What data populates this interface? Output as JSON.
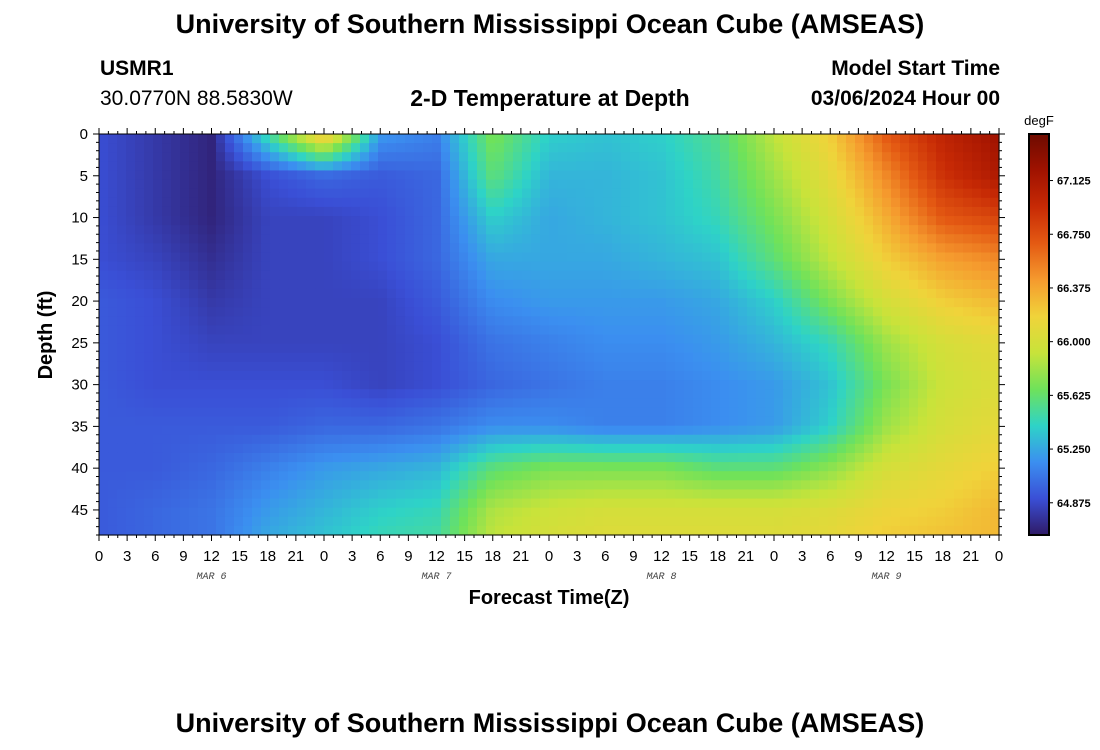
{
  "page": {
    "title": "University of Southern Mississippi Ocean Cube (AMSEAS)",
    "footer_title": "University of Southern Mississippi Ocean Cube (AMSEAS)",
    "station": "USMR1",
    "coords": "30.0770N  88.5830W",
    "plot_title": "2-D Temperature at Depth",
    "start_label": "Model Start Time",
    "start_value": "03/06/2024 Hour 00"
  },
  "chart_data": {
    "type": "heatmap",
    "title": "2-D Temperature at Depth",
    "xlabel": "Forecast Time(Z)",
    "ylabel": "Depth (ft)",
    "x_unit": "hours since 03/06/2024 00Z",
    "xlim": [
      0,
      96
    ],
    "ylim": [
      48,
      0
    ],
    "x_tick_labels": [
      "0",
      "3",
      "6",
      "9",
      "12",
      "15",
      "18",
      "21",
      "0",
      "3",
      "6",
      "9",
      "12",
      "15",
      "18",
      "21",
      "0",
      "3",
      "6",
      "9",
      "12",
      "15",
      "18",
      "21",
      "0",
      "3",
      "6",
      "9",
      "12",
      "15",
      "18",
      "21",
      "0"
    ],
    "date_labels": [
      "MAR 6",
      "MAR 7",
      "MAR 8",
      "MAR 9"
    ],
    "y_ticks": [
      0,
      5,
      10,
      15,
      20,
      25,
      30,
      35,
      40,
      45
    ],
    "colorbar": {
      "unit": "degF",
      "min": 64.65,
      "max": 67.45,
      "tick_labels": [
        "64.875",
        "65.250",
        "65.625",
        "66.000",
        "66.375",
        "66.750",
        "67.125"
      ],
      "colors": [
        "#2f1a66",
        "#3a4fd6",
        "#3b8ff0",
        "#2ed3c7",
        "#6fe25a",
        "#c8e33a",
        "#f0d33a",
        "#f59a2e",
        "#e45a13",
        "#c72a05",
        "#a01200",
        "#6e0b00"
      ]
    },
    "hours": [
      0,
      6,
      12,
      18,
      24,
      30,
      36,
      42,
      48,
      54,
      60,
      66,
      72,
      78,
      84,
      90,
      96
    ],
    "depths": [
      0,
      5,
      10,
      15,
      20,
      25,
      30,
      35,
      40,
      45,
      48
    ],
    "values": [
      [
        64.9,
        64.8,
        64.7,
        65.5,
        66.3,
        65.2,
        65.1,
        65.7,
        65.4,
        65.35,
        65.4,
        65.55,
        65.9,
        66.2,
        66.7,
        67.0,
        67.2
      ],
      [
        64.9,
        64.8,
        64.7,
        64.9,
        65.0,
        64.95,
        65.0,
        65.6,
        65.3,
        65.3,
        65.35,
        65.5,
        65.8,
        66.1,
        66.5,
        66.9,
        67.1
      ],
      [
        64.9,
        64.8,
        64.7,
        64.85,
        64.85,
        64.9,
        65.0,
        65.4,
        65.25,
        65.3,
        65.35,
        65.45,
        65.7,
        66.0,
        66.35,
        66.7,
        66.8
      ],
      [
        64.9,
        64.85,
        64.75,
        64.85,
        64.85,
        64.9,
        65.0,
        65.25,
        65.25,
        65.25,
        65.3,
        65.35,
        65.6,
        65.9,
        66.2,
        66.4,
        66.5
      ],
      [
        64.95,
        64.9,
        64.8,
        64.85,
        64.85,
        64.85,
        64.95,
        65.15,
        65.2,
        65.2,
        65.2,
        65.25,
        65.4,
        65.7,
        66.0,
        66.2,
        66.3
      ],
      [
        64.95,
        64.9,
        64.85,
        64.85,
        64.85,
        64.85,
        64.9,
        65.05,
        65.1,
        65.15,
        65.15,
        65.2,
        65.3,
        65.45,
        65.8,
        66.0,
        66.1
      ],
      [
        64.95,
        64.9,
        64.9,
        64.9,
        64.9,
        64.85,
        64.9,
        65.0,
        65.05,
        65.1,
        65.1,
        65.15,
        65.2,
        65.35,
        65.7,
        65.95,
        66.05
      ],
      [
        64.95,
        64.95,
        64.95,
        64.95,
        65.0,
        65.0,
        65.05,
        65.15,
        65.15,
        65.1,
        65.1,
        65.15,
        65.2,
        65.4,
        65.8,
        66.0,
        66.1
      ],
      [
        64.95,
        64.95,
        65.0,
        65.1,
        65.2,
        65.25,
        65.3,
        65.6,
        65.7,
        65.7,
        65.7,
        65.6,
        65.6,
        65.75,
        66.0,
        66.1,
        66.2
      ],
      [
        64.95,
        65.0,
        65.05,
        65.2,
        65.3,
        65.4,
        65.45,
        65.85,
        65.95,
        66.0,
        66.0,
        66.0,
        66.0,
        66.05,
        66.15,
        66.2,
        66.3
      ],
      [
        64.95,
        65.0,
        65.05,
        65.25,
        65.35,
        65.45,
        65.5,
        65.9,
        66.0,
        66.05,
        66.05,
        66.05,
        66.05,
        66.1,
        66.2,
        66.25,
        66.3
      ]
    ]
  }
}
